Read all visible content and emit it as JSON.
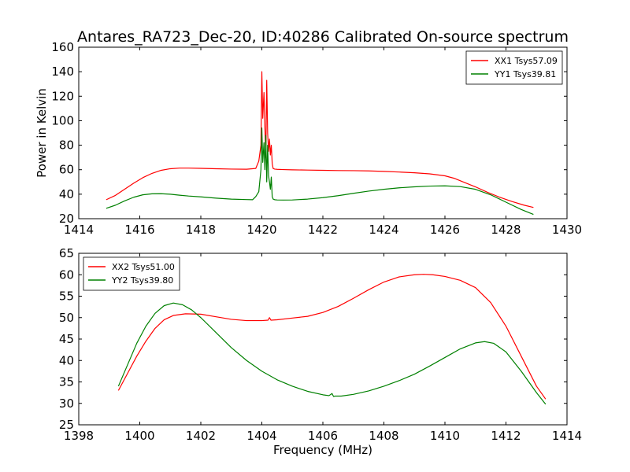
{
  "title": "Antares_RA723_Dec-20, ID:40286 Calibrated On-source spectrum",
  "colors": {
    "red": "#ff0000",
    "green": "#008000",
    "axes": "#000000",
    "background": "#ffffff"
  },
  "chart_data": [
    {
      "type": "line",
      "title": "Antares_RA723_Dec-20, ID:40286 Calibrated On-source spectrum",
      "xlabel": "",
      "ylabel": "Power in Kelvin",
      "xlim": [
        1414,
        1430
      ],
      "ylim": [
        20,
        160
      ],
      "xticks": [
        "1414",
        "1416",
        "1418",
        "1420",
        "1422",
        "1424",
        "1426",
        "1428",
        "1430"
      ],
      "yticks": [
        "20",
        "40",
        "60",
        "80",
        "100",
        "120",
        "140",
        "160"
      ],
      "grid": false,
      "legend_position": "top-right",
      "series": [
        {
          "name": "XX1 Tsys57.09",
          "color": "#ff0000",
          "x": [
            1414.9,
            1415.2,
            1415.5,
            1415.8,
            1416.1,
            1416.4,
            1416.7,
            1417.0,
            1417.3,
            1417.6,
            1418.0,
            1418.5,
            1419.0,
            1419.5,
            1419.8,
            1419.9,
            1419.97,
            1420.0,
            1420.03,
            1420.07,
            1420.1,
            1420.13,
            1420.16,
            1420.19,
            1420.22,
            1420.25,
            1420.28,
            1420.31,
            1420.34,
            1420.37,
            1420.42,
            1420.5,
            1420.7,
            1421.0,
            1421.5,
            1422.0,
            1422.5,
            1423.0,
            1423.5,
            1424.0,
            1424.5,
            1425.0,
            1425.5,
            1426.0,
            1426.3,
            1426.6,
            1427.0,
            1427.4,
            1427.8,
            1428.2,
            1428.6,
            1428.9
          ],
          "y": [
            35.5,
            39,
            44,
            49,
            53.5,
            57,
            59.5,
            60.8,
            61.3,
            61.3,
            61.1,
            60.8,
            60.5,
            60.4,
            61,
            67,
            80,
            140,
            102,
            123,
            95,
            70,
            133,
            90,
            75,
            85,
            72,
            80,
            65,
            61,
            60.5,
            60.3,
            60.1,
            59.9,
            59.7,
            59.5,
            59.3,
            59.2,
            59.0,
            58.6,
            58.1,
            57.5,
            56.6,
            55.0,
            53.0,
            50.0,
            46.0,
            41.5,
            37.5,
            34.0,
            31.0,
            29.2
          ]
        },
        {
          "name": "YY1 Tsys39.81",
          "color": "#008000",
          "x": [
            1414.9,
            1415.2,
            1415.5,
            1415.8,
            1416.1,
            1416.4,
            1416.7,
            1417.0,
            1417.3,
            1417.6,
            1418.0,
            1418.5,
            1419.0,
            1419.5,
            1419.7,
            1419.8,
            1419.9,
            1419.97,
            1420.0,
            1420.03,
            1420.07,
            1420.1,
            1420.13,
            1420.16,
            1420.19,
            1420.22,
            1420.25,
            1420.28,
            1420.31,
            1420.34,
            1420.37,
            1420.42,
            1420.5,
            1420.7,
            1421.0,
            1421.5,
            1422.0,
            1422.5,
            1423.0,
            1423.5,
            1424.0,
            1424.5,
            1425.0,
            1425.5,
            1426.0,
            1426.5,
            1427.0,
            1427.5,
            1428.0,
            1428.5,
            1428.9
          ],
          "y": [
            28.5,
            31,
            34.5,
            37.5,
            39.5,
            40.3,
            40.4,
            40.0,
            39.2,
            38.5,
            37.8,
            36.8,
            36.0,
            35.6,
            35.5,
            38,
            42,
            60,
            94,
            66,
            82,
            60,
            88,
            50,
            80,
            55,
            50,
            44,
            54,
            38,
            36,
            35.5,
            35.3,
            35.2,
            35.3,
            36,
            37.2,
            38.8,
            40.7,
            42.5,
            44.0,
            45.2,
            46.0,
            46.6,
            46.8,
            46.2,
            44.0,
            39.5,
            33.5,
            27.5,
            23.5
          ]
        }
      ]
    },
    {
      "type": "line",
      "title": "",
      "xlabel": "Frequency (MHz)",
      "ylabel": "",
      "xlim": [
        1398,
        1414
      ],
      "ylim": [
        25,
        65
      ],
      "xticks": [
        "1398",
        "1400",
        "1402",
        "1404",
        "1406",
        "1408",
        "1410",
        "1412",
        "1414"
      ],
      "yticks": [
        "25",
        "30",
        "35",
        "40",
        "45",
        "50",
        "55",
        "60",
        "65"
      ],
      "grid": false,
      "legend_position": "top-left",
      "series": [
        {
          "name": "XX2 Tsys51.00",
          "color": "#ff0000",
          "x": [
            1399.3,
            1399.6,
            1399.9,
            1400.2,
            1400.5,
            1400.8,
            1401.1,
            1401.5,
            1402.0,
            1402.5,
            1403.0,
            1403.5,
            1404.0,
            1404.2,
            1404.25,
            1404.3,
            1404.5,
            1405.0,
            1405.5,
            1406.0,
            1406.5,
            1407.0,
            1407.5,
            1408.0,
            1408.5,
            1409.0,
            1409.3,
            1409.6,
            1410.0,
            1410.5,
            1411.0,
            1411.5,
            1412.0,
            1412.5,
            1413.0,
            1413.3
          ],
          "y": [
            33,
            37,
            41,
            44.5,
            47.5,
            49.5,
            50.5,
            50.9,
            50.8,
            50.2,
            49.6,
            49.3,
            49.3,
            49.4,
            50,
            49.4,
            49.5,
            49.9,
            50.3,
            51.2,
            52.6,
            54.5,
            56.5,
            58.3,
            59.5,
            60.0,
            60.1,
            60.0,
            59.6,
            58.7,
            57.0,
            53.5,
            48.0,
            41.0,
            34.0,
            31.0
          ]
        },
        {
          "name": "YY2 Tsys39.80",
          "color": "#008000",
          "x": [
            1399.3,
            1399.6,
            1399.9,
            1400.2,
            1400.5,
            1400.8,
            1401.1,
            1401.4,
            1401.7,
            1402.0,
            1402.5,
            1403.0,
            1403.5,
            1404.0,
            1404.5,
            1405.0,
            1405.5,
            1406.0,
            1406.2,
            1406.3,
            1406.35,
            1406.4,
            1406.6,
            1407.0,
            1407.5,
            1408.0,
            1408.5,
            1409.0,
            1409.5,
            1410.0,
            1410.5,
            1411.0,
            1411.3,
            1411.6,
            1412.0,
            1412.5,
            1413.0,
            1413.3
          ],
          "y": [
            34,
            39,
            44,
            48,
            51,
            52.8,
            53.4,
            53.0,
            51.8,
            50.0,
            46.5,
            43.0,
            40.0,
            37.5,
            35.5,
            34.0,
            32.8,
            32.0,
            31.8,
            32.3,
            31.6,
            31.7,
            31.7,
            32.1,
            32.9,
            34.0,
            35.3,
            36.8,
            38.7,
            40.7,
            42.7,
            44.1,
            44.4,
            44.0,
            42.0,
            37.5,
            32.5,
            29.8
          ]
        }
      ]
    }
  ]
}
